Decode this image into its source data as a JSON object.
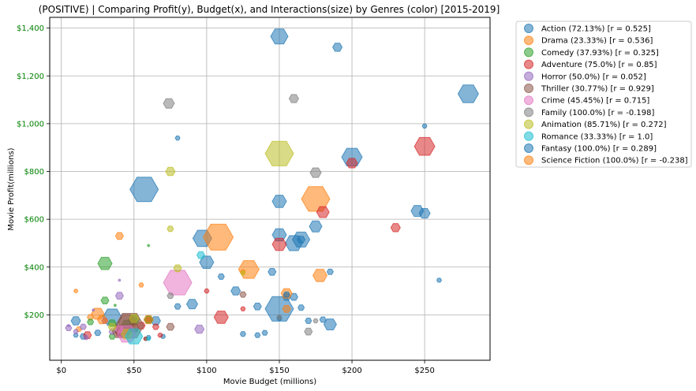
{
  "chart_data": {
    "type": "scatter",
    "title": "(POSITIVE) | Comparing Profit(y), Budget(x), and Interactions(size) by Genres (color) [2015-2019]",
    "xlabel": "Movie Budget (millions)",
    "ylabel": "Movie Profit(millions)",
    "xlim": [
      -8,
      295
    ],
    "ylim": [
      10,
      1445
    ],
    "xticks": [
      0,
      50,
      100,
      150,
      200,
      250
    ],
    "xtick_labels": [
      "$0",
      "$50",
      "$100",
      "$150",
      "$200",
      "$250"
    ],
    "yticks": [
      200,
      400,
      600,
      800,
      1000,
      1200,
      1400
    ],
    "ytick_labels": [
      "$200",
      "$400",
      "$600",
      "$800",
      "$1,000",
      "$1,200",
      "$1,400"
    ],
    "ytick_color": "#008000",
    "grid": true,
    "legend_position": "outside-right",
    "marker": "hexagon",
    "series": [
      {
        "name": "Action (72.13%) [r = 0.525]",
        "color": "#1f77b4",
        "points": [
          [
            150,
            1365,
            22
          ],
          [
            190,
            1320,
            12
          ],
          [
            280,
            1125,
            26
          ],
          [
            250,
            990,
            6
          ],
          [
            80,
            940,
            6
          ],
          [
            200,
            860,
            26
          ],
          [
            57,
            725,
            36
          ],
          [
            150,
            675,
            18
          ],
          [
            245,
            635,
            16
          ],
          [
            250,
            625,
            14
          ],
          [
            175,
            570,
            16
          ],
          [
            97,
            520,
            24
          ],
          [
            150,
            535,
            18
          ],
          [
            160,
            500,
            22
          ],
          [
            165,
            515,
            22
          ],
          [
            100,
            420,
            18
          ],
          [
            145,
            380,
            10
          ],
          [
            185,
            380,
            8
          ],
          [
            110,
            360,
            8
          ],
          [
            260,
            345,
            6
          ],
          [
            120,
            300,
            12
          ],
          [
            155,
            275,
            10
          ],
          [
            160,
            275,
            10
          ],
          [
            90,
            245,
            14
          ],
          [
            80,
            235,
            8
          ],
          [
            135,
            235,
            10
          ],
          [
            150,
            225,
            36
          ],
          [
            165,
            230,
            8
          ],
          [
            170,
            175,
            8
          ],
          [
            180,
            180,
            8
          ],
          [
            185,
            160,
            16
          ],
          [
            150,
            185,
            6
          ],
          [
            125,
            120,
            7
          ],
          [
            135,
            115,
            7
          ],
          [
            10,
            175,
            12
          ],
          [
            35,
            190,
            24
          ],
          [
            50,
            175,
            10
          ],
          [
            65,
            175,
            12
          ],
          [
            15,
            110,
            8
          ],
          [
            25,
            125,
            8
          ],
          [
            10,
            115,
            6
          ],
          [
            70,
            110,
            6
          ],
          [
            60,
            105,
            6
          ],
          [
            40,
            130,
            10
          ]
        ]
      },
      {
        "name": "Drama (23.33%) [r = 0.536]",
        "color": "#ff7f0e",
        "points": [
          [
            175,
            685,
            36
          ],
          [
            108,
            525,
            38
          ],
          [
            129,
            390,
            26
          ],
          [
            178,
            365,
            18
          ],
          [
            155,
            290,
            14
          ],
          [
            125,
            380,
            6
          ],
          [
            40,
            530,
            10
          ],
          [
            55,
            325,
            6
          ],
          [
            10,
            300,
            5
          ],
          [
            25,
            205,
            16
          ],
          [
            28,
            180,
            12
          ],
          [
            20,
            190,
            8
          ],
          [
            60,
            180,
            12
          ],
          [
            12,
            140,
            7
          ],
          [
            50,
            165,
            8
          ],
          [
            40,
            145,
            8
          ]
        ]
      },
      {
        "name": "Comedy (37.93%) [r = 0.325]",
        "color": "#2ca02c",
        "points": [
          [
            30,
            415,
            18
          ],
          [
            30,
            260,
            10
          ],
          [
            35,
            165,
            10
          ],
          [
            45,
            160,
            12
          ],
          [
            50,
            180,
            14
          ],
          [
            60,
            180,
            10
          ],
          [
            20,
            170,
            8
          ],
          [
            40,
            125,
            10
          ],
          [
            45,
            140,
            14
          ],
          [
            35,
            110,
            8
          ],
          [
            60,
            490,
            3
          ],
          [
            37,
            240,
            3
          ]
        ]
      },
      {
        "name": "Adventure (75.0%) [r = 0.85]",
        "color": "#d62728",
        "points": [
          [
            250,
            905,
            26
          ],
          [
            200,
            835,
            14
          ],
          [
            180,
            630,
            16
          ],
          [
            150,
            495,
            18
          ],
          [
            230,
            565,
            12
          ],
          [
            110,
            190,
            18
          ],
          [
            100,
            300,
            6
          ],
          [
            125,
            225,
            6
          ],
          [
            55,
            155,
            10
          ],
          [
            68,
            115,
            6
          ],
          [
            58,
            100,
            5
          ],
          [
            18,
            115,
            10
          ],
          [
            40,
            125,
            10
          ],
          [
            45,
            130,
            10
          ],
          [
            65,
            150,
            8
          ]
        ]
      },
      {
        "name": "Horror (50.0%) [r = 0.052]",
        "color": "#9467bd",
        "points": [
          [
            40,
            280,
            10
          ],
          [
            95,
            140,
            12
          ],
          [
            5,
            145,
            8
          ],
          [
            15,
            150,
            8
          ],
          [
            17,
            105,
            6
          ],
          [
            10,
            130,
            6
          ],
          [
            35,
            130,
            8
          ],
          [
            30,
            175,
            8
          ],
          [
            22,
            220,
            3
          ],
          [
            40,
            345,
            3
          ],
          [
            5,
            155,
            3
          ]
        ]
      },
      {
        "name": "Thriller (30.77%) [r = 0.929]",
        "color": "#8c564b",
        "points": [
          [
            47,
            155,
            36
          ],
          [
            45,
            170,
            22
          ],
          [
            40,
            130,
            18
          ],
          [
            50,
            145,
            12
          ],
          [
            75,
            150,
            10
          ],
          [
            125,
            285,
            8
          ],
          [
            60,
            180,
            6
          ],
          [
            58,
            100,
            5
          ]
        ]
      },
      {
        "name": "Crime (45.45%) [r = 0.715]",
        "color": "#e377c2",
        "points": [
          [
            80,
            335,
            36
          ],
          [
            45,
            120,
            24
          ],
          [
            40,
            140,
            10
          ]
        ]
      },
      {
        "name": "Family (100.0%) [r = -0.198]",
        "color": "#7f7f7f",
        "points": [
          [
            74,
            1085,
            14
          ],
          [
            160,
            1105,
            12
          ],
          [
            175,
            795,
            14
          ],
          [
            170,
            130,
            10
          ],
          [
            75,
            280,
            8
          ],
          [
            175,
            175,
            6
          ],
          [
            150,
            190,
            6
          ]
        ]
      },
      {
        "name": "Animation (85.71%) [r = 0.272]",
        "color": "#bcbd22",
        "points": [
          [
            150,
            875,
            36
          ],
          [
            75,
            800,
            12
          ],
          [
            75,
            560,
            8
          ],
          [
            80,
            395,
            10
          ],
          [
            125,
            375,
            6
          ],
          [
            50,
            185,
            12
          ],
          [
            45,
            120,
            14
          ],
          [
            35,
            150,
            10
          ]
        ]
      },
      {
        "name": "Romance (33.33%) [r = 1.0]",
        "color": "#17becf",
        "points": [
          [
            50,
            110,
            22
          ],
          [
            96,
            450,
            10
          ],
          [
            60,
            100,
            5
          ]
        ]
      },
      {
        "name": "Fantasy (100.0%) [r = 0.289]",
        "color": "#1f77b4",
        "points": [
          [
            165,
            515,
            10
          ],
          [
            155,
            285,
            8
          ],
          [
            140,
            125,
            7
          ]
        ]
      },
      {
        "name": "Science Fiction (100.0%) [r = -0.238]",
        "color": "#ff7f0e",
        "points": [
          [
            155,
            225,
            10
          ],
          [
            60,
            180,
            8
          ],
          [
            30,
            175,
            7
          ]
        ]
      }
    ]
  }
}
